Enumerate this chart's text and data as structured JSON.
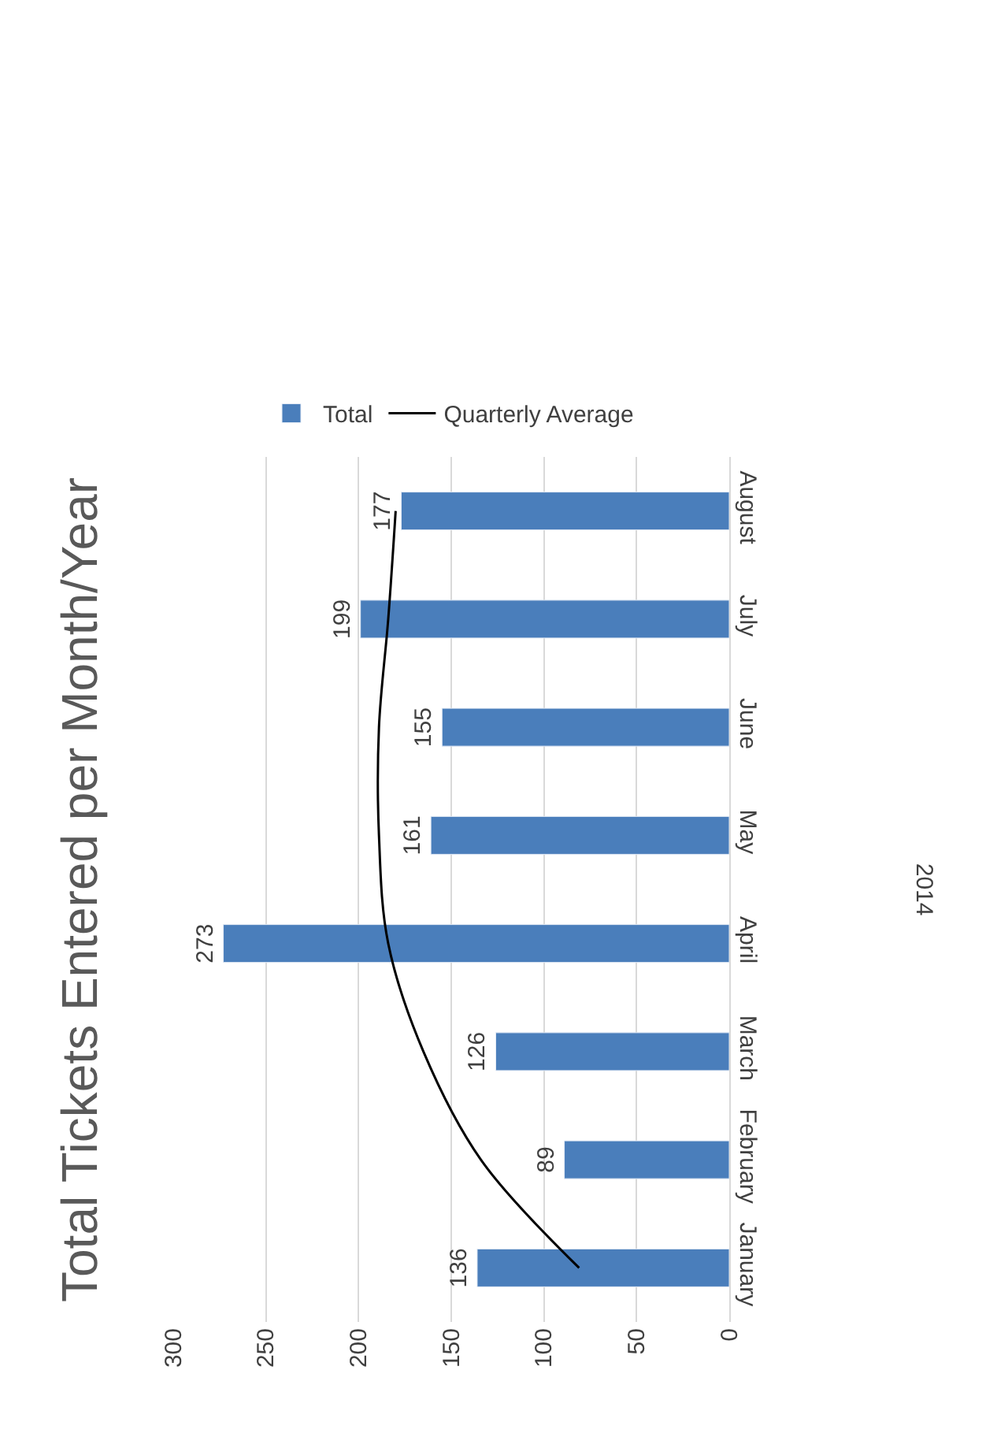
{
  "chart_data": {
    "type": "bar",
    "orientation": "horizontal",
    "title": "Total Tickets Entered per Month/Year",
    "categories": [
      "August",
      "July",
      "June",
      "May",
      "April",
      "March",
      "February",
      "January"
    ],
    "series": [
      {
        "name": "Total",
        "color": "#4a7ebb",
        "values": [
          177,
          199,
          155,
          161,
          273,
          126,
          89,
          136
        ],
        "value_labels": [
          "177",
          "199",
          "155",
          "161",
          "273",
          "126",
          "89",
          "136"
        ]
      },
      {
        "name": "Quarterly Average",
        "type": "line",
        "color": "#000000",
        "values": [
          180,
          184,
          189,
          189,
          184,
          165,
          134,
          81
        ]
      }
    ],
    "xlim": [
      300,
      0
    ],
    "xticks": [
      0,
      50,
      100,
      150,
      200,
      250,
      300
    ],
    "annotations": [
      "2014"
    ],
    "grid": "x",
    "legend": "top",
    "marker": "none"
  }
}
